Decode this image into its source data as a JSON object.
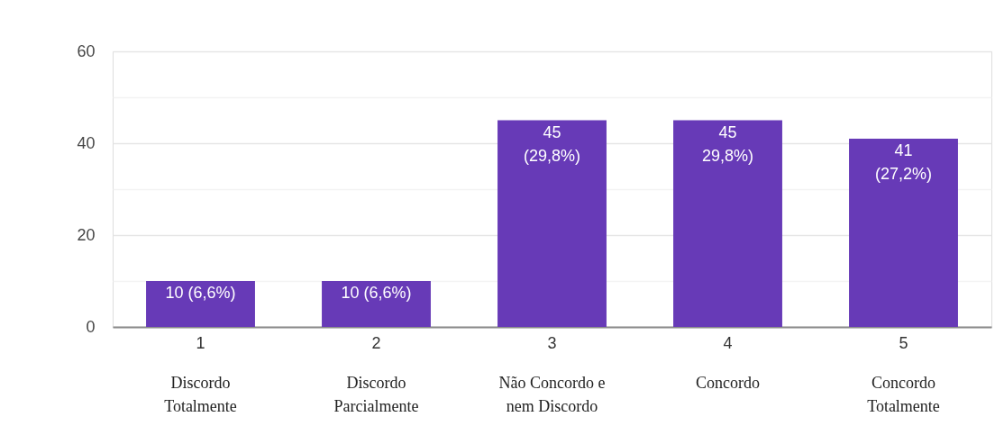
{
  "chart_data": {
    "type": "bar",
    "categories": [
      "1",
      "2",
      "3",
      "4",
      "5"
    ],
    "values": [
      10,
      10,
      45,
      45,
      41
    ],
    "color": "#673ab7",
    "value_labels": [
      "10 (6,6%)",
      "10 (6,6%)",
      "45\n(29,8%)",
      "45\n29,8%)",
      "41\n(27,2%)"
    ],
    "ylim": [
      0,
      60
    ],
    "yticks": [
      0,
      {
        "value": 10,
        "label": null
      },
      20,
      {
        "value": 30,
        "label": null
      },
      40,
      {
        "value": 50,
        "label": null
      },
      60
    ],
    "grid": "y",
    "annotations": [
      "Discordo\nTotalmente",
      "Discordo\nParcialmente",
      "Não Concordo e\nnem Discordo",
      "Concordo",
      "Concordo\nTotalmente"
    ]
  }
}
